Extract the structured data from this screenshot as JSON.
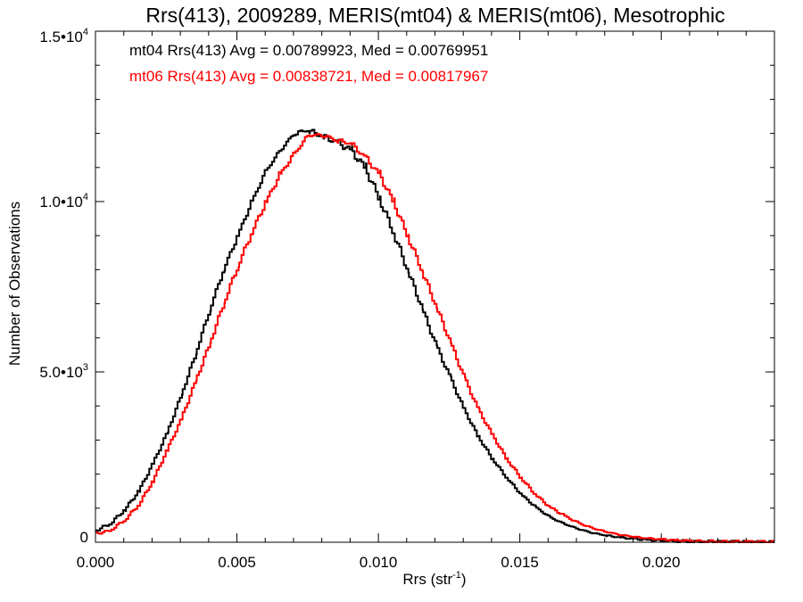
{
  "chart_data": {
    "type": "line",
    "style": "step-histogram",
    "title": "Rrs(413), 2009289, MERIS(mt04) & MERIS(mt06), Mesotrophic",
    "xlabel_main": "Rrs (str",
    "xlabel_sup": "-1",
    "xlabel_close": ")",
    "ylabel": "Number of Observations",
    "xlim": [
      0.0,
      0.024
    ],
    "ylim": [
      0,
      15000
    ],
    "x_ticks": [
      {
        "value": 0.0,
        "label": "0.000"
      },
      {
        "value": 0.005,
        "label": "0.005"
      },
      {
        "value": 0.01,
        "label": "0.010"
      },
      {
        "value": 0.015,
        "label": "0.015"
      },
      {
        "value": 0.02,
        "label": "0.020"
      }
    ],
    "y_ticks": [
      {
        "value": 0,
        "label": "0",
        "sup": ""
      },
      {
        "value": 5000,
        "label": "5.0•10",
        "sup": "3"
      },
      {
        "value": 10000,
        "label": "1.0•10",
        "sup": "4"
      },
      {
        "value": 15000,
        "label": "1.5•10",
        "sup": "4"
      }
    ],
    "grid": false,
    "legend_position": "top-left",
    "series": [
      {
        "name": "mt04",
        "legend": "mt04 Rrs(413) Avg = 0.00789923, Med = 0.00769951",
        "color": "#000000",
        "x": [
          0.0,
          0.0005,
          0.001,
          0.0015,
          0.002,
          0.0025,
          0.003,
          0.0035,
          0.004,
          0.0045,
          0.005,
          0.0055,
          0.006,
          0.0065,
          0.007,
          0.0075,
          0.008,
          0.0085,
          0.009,
          0.0095,
          0.01,
          0.0105,
          0.011,
          0.0115,
          0.012,
          0.0125,
          0.013,
          0.0135,
          0.014,
          0.0145,
          0.015,
          0.0155,
          0.016,
          0.0165,
          0.017,
          0.0175,
          0.018,
          0.0185,
          0.019,
          0.0195,
          0.02,
          0.0205,
          0.021,
          0.0215,
          0.022,
          0.0225,
          0.023,
          0.0235,
          0.024
        ],
        "y": [
          350,
          550,
          950,
          1500,
          2300,
          3200,
          4300,
          5500,
          6800,
          8000,
          9000,
          10000,
          10900,
          11500,
          12000,
          12100,
          11900,
          11750,
          11500,
          11000,
          10100,
          9100,
          8000,
          6900,
          5800,
          4850,
          3900,
          3100,
          2450,
          1900,
          1420,
          1050,
          750,
          550,
          400,
          280,
          200,
          140,
          100,
          70,
          50,
          35,
          25,
          18,
          12,
          8,
          5,
          3,
          2
        ]
      },
      {
        "name": "mt06",
        "legend": "mt06 Rrs(413) Avg = 0.00838721, Med = 0.00817967",
        "color": "#ff0000",
        "x": [
          0.0,
          0.0005,
          0.001,
          0.0015,
          0.002,
          0.0025,
          0.003,
          0.0035,
          0.004,
          0.0045,
          0.005,
          0.0055,
          0.006,
          0.0065,
          0.007,
          0.0075,
          0.008,
          0.0085,
          0.009,
          0.0095,
          0.01,
          0.0105,
          0.011,
          0.0115,
          0.012,
          0.0125,
          0.013,
          0.0135,
          0.014,
          0.0145,
          0.015,
          0.0155,
          0.016,
          0.0165,
          0.017,
          0.0175,
          0.018,
          0.0185,
          0.019,
          0.0195,
          0.02,
          0.0205,
          0.021,
          0.0215,
          0.022,
          0.0225,
          0.023,
          0.0235,
          0.024
        ],
        "y": [
          250,
          350,
          650,
          1100,
          1800,
          2700,
          3600,
          4700,
          5800,
          7000,
          8100,
          9100,
          10000,
          10800,
          11400,
          11950,
          11950,
          11800,
          11700,
          11300,
          10800,
          10000,
          9000,
          8000,
          6950,
          5900,
          4850,
          3900,
          3150,
          2450,
          1900,
          1420,
          1050,
          800,
          580,
          420,
          310,
          220,
          160,
          110,
          80,
          55,
          40,
          28,
          19,
          13,
          9,
          6,
          4
        ]
      }
    ]
  }
}
